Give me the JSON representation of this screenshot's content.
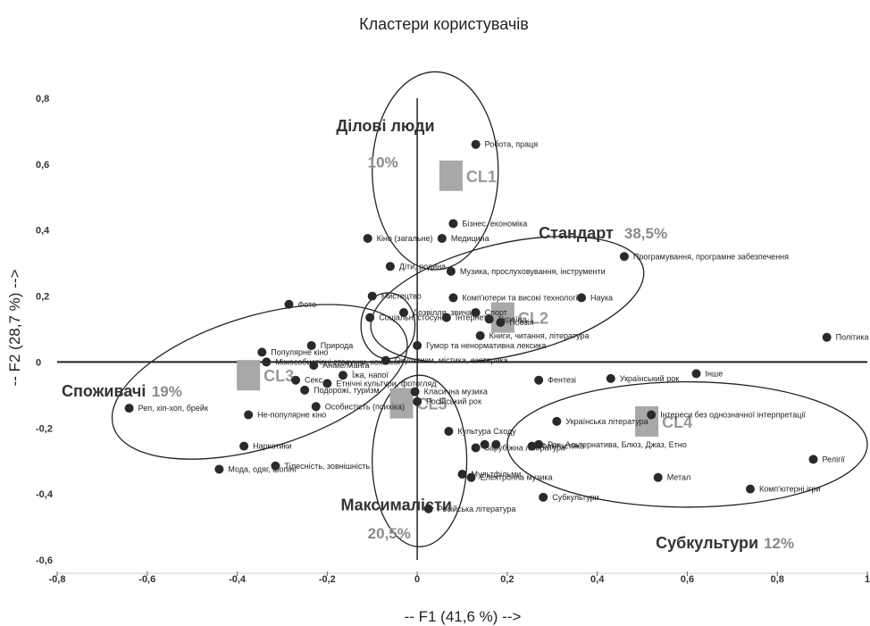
{
  "chart_data": {
    "type": "scatter",
    "title": "Кластери користувачів",
    "xlabel": "-- F1 (41,6 %) -->",
    "ylabel": "-- F2 (28,7 %) -->",
    "xlim": [
      -0.8,
      1
    ],
    "ylim": [
      -0.6,
      0.8
    ],
    "xticks": [
      "-0,8",
      "-0,6",
      "-0,4",
      "-0,2",
      "0",
      "0,2",
      "0,4",
      "0,6",
      "0,8",
      "1"
    ],
    "yticks": [
      "-0,6",
      "-0,4",
      "-0,2",
      "0",
      "0,2",
      "0,4",
      "0,6",
      "0,8"
    ],
    "grid": false,
    "points": [
      {
        "x": 0.13,
        "y": 0.66,
        "label": "Робота, праця"
      },
      {
        "x": 0.08,
        "y": 0.42,
        "label": "Бізнес, економіка"
      },
      {
        "x": 0.055,
        "y": 0.375,
        "label": "Медицина"
      },
      {
        "x": -0.11,
        "y": 0.375,
        "label": "Кіно (загальне)"
      },
      {
        "x": -0.06,
        "y": 0.29,
        "label": "Діти, родина"
      },
      {
        "x": 0.075,
        "y": 0.275,
        "label": "Музика, прослуховування, інструменти"
      },
      {
        "x": 0.46,
        "y": 0.32,
        "label": "Програмування, програмне забезпечення"
      },
      {
        "x": 0.08,
        "y": 0.195,
        "label": "Комп'ютери та високі технології"
      },
      {
        "x": -0.1,
        "y": 0.2,
        "label": "Мистецтво"
      },
      {
        "x": 0.365,
        "y": 0.195,
        "label": "Наука"
      },
      {
        "x": -0.285,
        "y": 0.175,
        "label": "Фото"
      },
      {
        "x": -0.105,
        "y": 0.135,
        "label": "Соціальні стосунки"
      },
      {
        "x": -0.03,
        "y": 0.15,
        "label": "Дозвілля, звичаї"
      },
      {
        "x": 0.065,
        "y": 0.135,
        "label": "Інтернет"
      },
      {
        "x": 0.13,
        "y": 0.15,
        "label": "Спорт"
      },
      {
        "x": 0.16,
        "y": 0.13,
        "label": "Україна"
      },
      {
        "x": 0.185,
        "y": 0.12,
        "label": "Поезія"
      },
      {
        "x": 0.14,
        "y": 0.08,
        "label": "Книги, читання, література"
      },
      {
        "x": 0.0,
        "y": 0.05,
        "label": "Гумор та ненормативна лексика"
      },
      {
        "x": 0.91,
        "y": 0.075,
        "label": "Політика"
      },
      {
        "x": -0.235,
        "y": 0.05,
        "label": "Природа"
      },
      {
        "x": -0.345,
        "y": 0.03,
        "label": "Популярне кіно"
      },
      {
        "x": -0.07,
        "y": 0.005,
        "label": "Окультизм, містика, езотерика"
      },
      {
        "x": -0.335,
        "y": 0.0,
        "label": "Міжособистісні стосунки, кохання"
      },
      {
        "x": -0.23,
        "y": -0.01,
        "label": "Аніме/Манга"
      },
      {
        "x": -0.165,
        "y": -0.04,
        "label": "Їжа, напої"
      },
      {
        "x": -0.27,
        "y": -0.055,
        "label": "Секс"
      },
      {
        "x": -0.2,
        "y": -0.065,
        "label": "Етнічні культури, фотогляд"
      },
      {
        "x": -0.25,
        "y": -0.085,
        "label": "Подорожі, туризм"
      },
      {
        "x": -0.225,
        "y": -0.135,
        "label": "Особистість (психіка)"
      },
      {
        "x": -0.375,
        "y": -0.16,
        "label": "Не-популярне кіно"
      },
      {
        "x": -0.64,
        "y": -0.14,
        "label": "Реп, хіп-хоп, брейк"
      },
      {
        "x": -0.385,
        "y": -0.255,
        "label": "Наркотики"
      },
      {
        "x": -0.315,
        "y": -0.315,
        "label": "Тілесність, зовнішність"
      },
      {
        "x": -0.44,
        "y": -0.325,
        "label": "Мода, одяг, шопінг"
      },
      {
        "x": 0.27,
        "y": -0.055,
        "label": "Фентезі"
      },
      {
        "x": 0.43,
        "y": -0.05,
        "label": "Український рок"
      },
      {
        "x": 0.62,
        "y": -0.035,
        "label": "Інше"
      },
      {
        "x": -0.005,
        "y": -0.09,
        "label": "Класична музика"
      },
      {
        "x": 0.0,
        "y": -0.12,
        "label": "Російський рок"
      },
      {
        "x": 0.31,
        "y": -0.18,
        "label": "Українська література"
      },
      {
        "x": 0.52,
        "y": -0.16,
        "label": "Інтереси без однозначної інтерпретації"
      },
      {
        "x": 0.07,
        "y": -0.21,
        "label": "Культура Сходу"
      },
      {
        "x": 0.13,
        "y": -0.26,
        "label": "Зарубіжна література"
      },
      {
        "x": 0.15,
        "y": -0.25,
        "label": ""
      },
      {
        "x": 0.175,
        "y": -0.25,
        "label": ""
      },
      {
        "x": 0.255,
        "y": -0.255,
        "label": "Фантастика"
      },
      {
        "x": 0.27,
        "y": -0.25,
        "label": "Рок, Альтернатива, Блюз, Джаз, Етно"
      },
      {
        "x": 0.88,
        "y": -0.295,
        "label": "Релігії"
      },
      {
        "x": 0.1,
        "y": -0.34,
        "label": "Мультфільми"
      },
      {
        "x": 0.12,
        "y": -0.35,
        "label": "Електронна музика"
      },
      {
        "x": 0.535,
        "y": -0.35,
        "label": "Метал"
      },
      {
        "x": 0.74,
        "y": -0.385,
        "label": "Комп'ютерні ігри"
      },
      {
        "x": 0.28,
        "y": -0.41,
        "label": "Субкультури"
      },
      {
        "x": 0.025,
        "y": -0.445,
        "label": "Російська література"
      }
    ],
    "centroids": [
      {
        "label": "CL1",
        "x": 0.075,
        "y": 0.565
      },
      {
        "label": "CL2",
        "x": 0.19,
        "y": 0.135
      },
      {
        "label": "CL3",
        "x": -0.375,
        "y": -0.04
      },
      {
        "label": "CL4",
        "x": 0.51,
        "y": -0.18
      },
      {
        "label": "CL5",
        "x": -0.035,
        "y": -0.125
      }
    ],
    "clusters": [
      {
        "name": "Ділові люди",
        "percent": "10%",
        "cx": 0.04,
        "cy": 0.58,
        "rx": 0.14,
        "ry": 0.3,
        "rot": 0,
        "name_x": -0.18,
        "name_y": 0.7,
        "pct_x": -0.11,
        "pct_y": 0.59
      },
      {
        "name": "Стандарт",
        "percent": "38,5%",
        "cx": 0.2,
        "cy": 0.19,
        "rx": 0.31,
        "ry": 0.17,
        "rot": 13,
        "name_x": 0.27,
        "name_y": 0.375,
        "pct_x": 0.46,
        "pct_y": 0.375
      },
      {
        "name": "Споживачі",
        "percent": "19%",
        "cx": -0.35,
        "cy": -0.06,
        "rx": 0.34,
        "ry": 0.2,
        "rot": 17,
        "name_x": -0.79,
        "name_y": -0.105,
        "pct_x": -0.59,
        "pct_y": -0.105
      },
      {
        "name": "Максималісти",
        "percent": "20,5%",
        "cx": 0.005,
        "cy": -0.3,
        "rx": 0.105,
        "ry": 0.26,
        "rot": 0,
        "name_x": -0.17,
        "name_y": -0.45,
        "pct_x": -0.11,
        "pct_y": -0.535
      },
      {
        "name": "Субкультури",
        "percent": "12%",
        "cx": 0.6,
        "cy": -0.25,
        "rx": 0.4,
        "ry": 0.19,
        "rot": 0,
        "name_x": 0.53,
        "name_y": -0.565,
        "pct_x": 0.77,
        "pct_y": -0.565
      },
      {
        "name": "",
        "percent": "",
        "cx": -0.065,
        "cy": 0.11,
        "rx": 0.06,
        "ry": 0.1,
        "rot": 0
      }
    ]
  }
}
